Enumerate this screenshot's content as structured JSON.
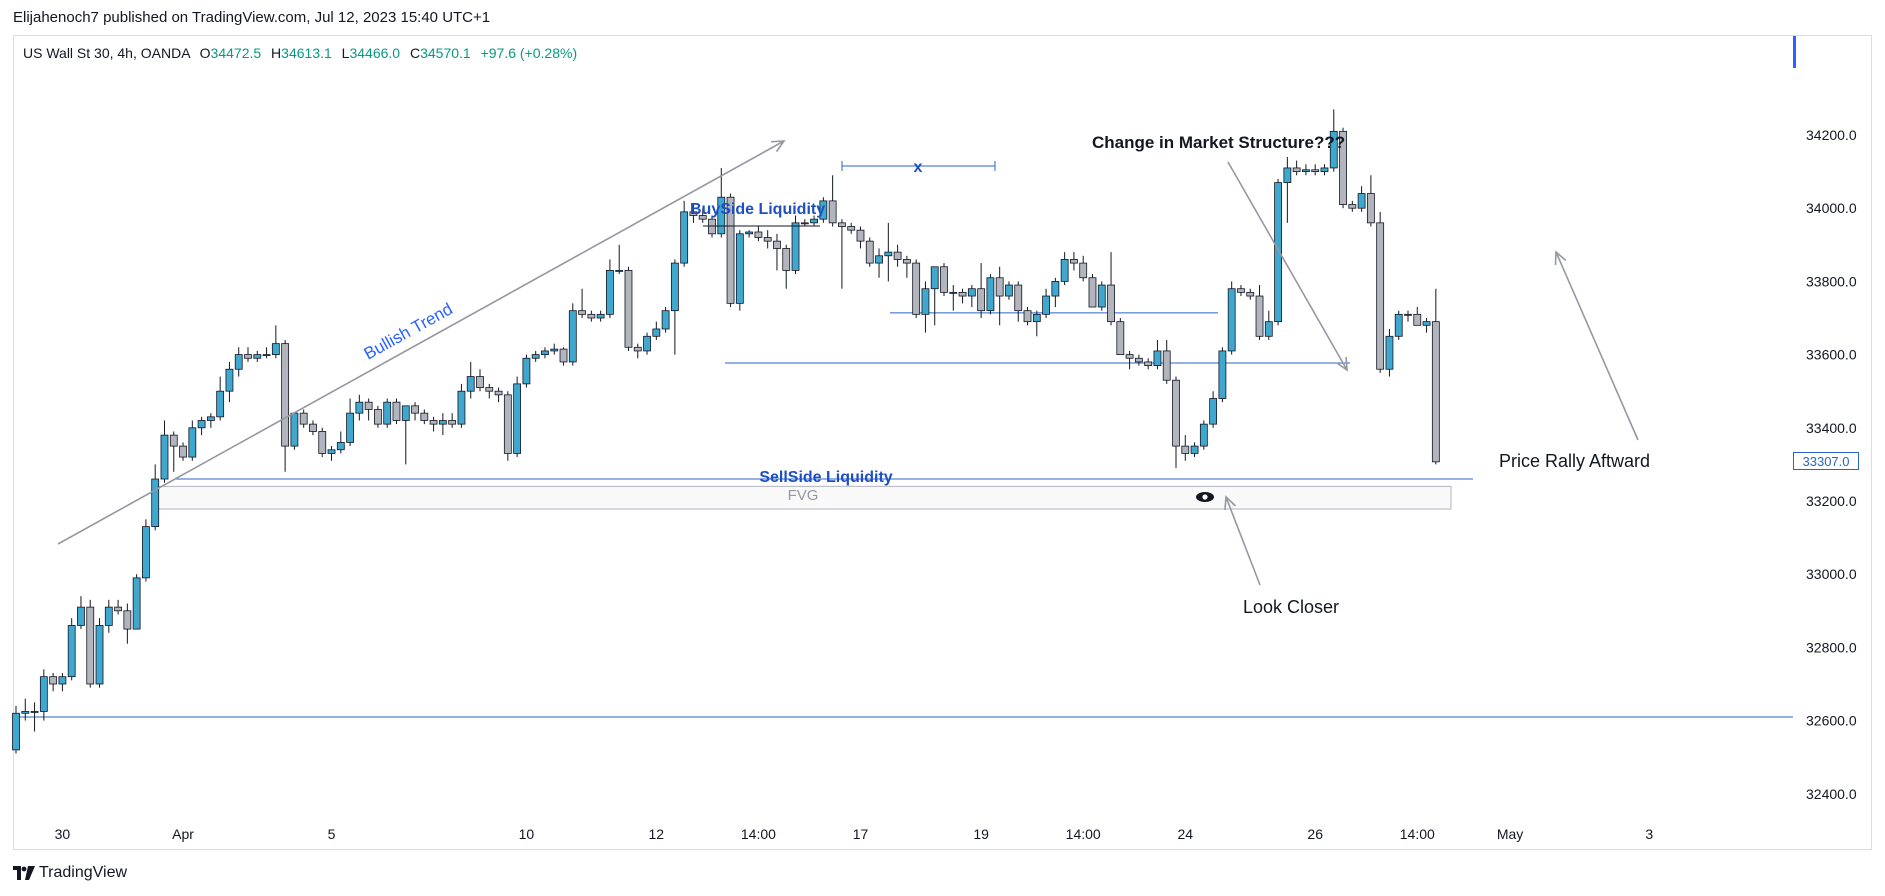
{
  "publish_line": "Elijahenoch7 published on TradingView.com, Jul 12, 2023 15:40 UTC+1",
  "legend": {
    "symbol": "US Wall St 30, 4h, OANDA",
    "open_label": "O",
    "open": "34472.5",
    "high_label": "H",
    "high": "34613.1",
    "low_label": "L",
    "low": "34466.0",
    "close_label": "C",
    "close": "34570.1",
    "change": "+97.6 (+0.28%)"
  },
  "footer": {
    "brand": "TradingView",
    "logo_icon": "tradingview-logo-icon"
  },
  "last_price_label": "33307.0",
  "colors": {
    "up": "#40a8cf",
    "down": "#b2b5be",
    "wick": "#131722",
    "line": "#2a64c8",
    "arrow": "#9598a1",
    "text_blue": "#1e4fc2"
  },
  "chart_data": {
    "type": "candlestick",
    "title": "US Wall St 30, 4h, OANDA",
    "ylim": [
      32350,
      34370
    ],
    "y_ticks": [
      "34200.0",
      "34000.0",
      "33800.0",
      "33600.0",
      "33400.0",
      "33200.0",
      "33000.0",
      "32800.0",
      "32600.0",
      "32400.0"
    ],
    "y_tick_values": [
      34200,
      34000,
      33800,
      33600,
      33400,
      33200,
      33000,
      32800,
      32600,
      32400
    ],
    "x_tick_labels": [
      {
        "label": "30",
        "i": 5
      },
      {
        "label": "Apr",
        "i": 18
      },
      {
        "label": "5",
        "i": 34
      },
      {
        "label": "10",
        "i": 55
      },
      {
        "label": "12",
        "i": 69
      },
      {
        "label": "14:00",
        "i": 80
      },
      {
        "label": "17",
        "i": 91
      },
      {
        "label": "19",
        "i": 104
      },
      {
        "label": "14:00",
        "i": 115
      },
      {
        "label": "24",
        "i": 126
      },
      {
        "label": "26",
        "i": 140
      },
      {
        "label": "14:00",
        "i": 151
      },
      {
        "label": "May",
        "i": 161
      },
      {
        "label": "3",
        "i": 176
      }
    ],
    "candles": [
      {
        "o": 32520,
        "h": 32640,
        "l": 32510,
        "c": 32620
      },
      {
        "o": 32620,
        "h": 32660,
        "l": 32600,
        "c": 32625
      },
      {
        "o": 32625,
        "h": 32650,
        "l": 32570,
        "c": 32625
      },
      {
        "o": 32625,
        "h": 32740,
        "l": 32600,
        "c": 32720
      },
      {
        "o": 32720,
        "h": 32730,
        "l": 32680,
        "c": 32700
      },
      {
        "o": 32700,
        "h": 32730,
        "l": 32680,
        "c": 32720
      },
      {
        "o": 32720,
        "h": 32880,
        "l": 32710,
        "c": 32860
      },
      {
        "o": 32860,
        "h": 32940,
        "l": 32850,
        "c": 32910
      },
      {
        "o": 32910,
        "h": 32930,
        "l": 32690,
        "c": 32700
      },
      {
        "o": 32700,
        "h": 32880,
        "l": 32690,
        "c": 32860
      },
      {
        "o": 32860,
        "h": 32930,
        "l": 32840,
        "c": 32910
      },
      {
        "o": 32910,
        "h": 32930,
        "l": 32890,
        "c": 32900
      },
      {
        "o": 32900,
        "h": 32920,
        "l": 32810,
        "c": 32850
      },
      {
        "o": 32850,
        "h": 33000,
        "l": 32850,
        "c": 32990
      },
      {
        "o": 32990,
        "h": 33150,
        "l": 32980,
        "c": 33130
      },
      {
        "o": 33130,
        "h": 33300,
        "l": 33120,
        "c": 33260
      },
      {
        "o": 33260,
        "h": 33420,
        "l": 33250,
        "c": 33380
      },
      {
        "o": 33380,
        "h": 33390,
        "l": 33280,
        "c": 33350
      },
      {
        "o": 33350,
        "h": 33360,
        "l": 33310,
        "c": 33320
      },
      {
        "o": 33320,
        "h": 33420,
        "l": 33310,
        "c": 33400
      },
      {
        "o": 33400,
        "h": 33430,
        "l": 33380,
        "c": 33420
      },
      {
        "o": 33420,
        "h": 33440,
        "l": 33400,
        "c": 33430
      },
      {
        "o": 33430,
        "h": 33540,
        "l": 33420,
        "c": 33500
      },
      {
        "o": 33500,
        "h": 33580,
        "l": 33470,
        "c": 33560
      },
      {
        "o": 33560,
        "h": 33620,
        "l": 33540,
        "c": 33600
      },
      {
        "o": 33600,
        "h": 33620,
        "l": 33580,
        "c": 33590
      },
      {
        "o": 33590,
        "h": 33610,
        "l": 33580,
        "c": 33600
      },
      {
        "o": 33600,
        "h": 33620,
        "l": 33590,
        "c": 33600
      },
      {
        "o": 33600,
        "h": 33680,
        "l": 33590,
        "c": 33630
      },
      {
        "o": 33630,
        "h": 33640,
        "l": 33280,
        "c": 33350
      },
      {
        "o": 33350,
        "h": 33420,
        "l": 33340,
        "c": 33440
      },
      {
        "o": 33440,
        "h": 33450,
        "l": 33400,
        "c": 33410
      },
      {
        "o": 33410,
        "h": 33420,
        "l": 33380,
        "c": 33390
      },
      {
        "o": 33390,
        "h": 33400,
        "l": 33320,
        "c": 33330
      },
      {
        "o": 33330,
        "h": 33350,
        "l": 33310,
        "c": 33340
      },
      {
        "o": 33340,
        "h": 33390,
        "l": 33330,
        "c": 33360
      },
      {
        "o": 33360,
        "h": 33480,
        "l": 33350,
        "c": 33440
      },
      {
        "o": 33440,
        "h": 33490,
        "l": 33420,
        "c": 33470
      },
      {
        "o": 33470,
        "h": 33480,
        "l": 33420,
        "c": 33450
      },
      {
        "o": 33450,
        "h": 33460,
        "l": 33400,
        "c": 33410
      },
      {
        "o": 33410,
        "h": 33480,
        "l": 33400,
        "c": 33470
      },
      {
        "o": 33470,
        "h": 33480,
        "l": 33410,
        "c": 33420
      },
      {
        "o": 33420,
        "h": 33460,
        "l": 33300,
        "c": 33460
      },
      {
        "o": 33460,
        "h": 33470,
        "l": 33420,
        "c": 33440
      },
      {
        "o": 33440,
        "h": 33450,
        "l": 33410,
        "c": 33420
      },
      {
        "o": 33420,
        "h": 33430,
        "l": 33390,
        "c": 33410
      },
      {
        "o": 33410,
        "h": 33440,
        "l": 33380,
        "c": 33420
      },
      {
        "o": 33420,
        "h": 33440,
        "l": 33400,
        "c": 33410
      },
      {
        "o": 33410,
        "h": 33520,
        "l": 33400,
        "c": 33500
      },
      {
        "o": 33500,
        "h": 33580,
        "l": 33480,
        "c": 33540
      },
      {
        "o": 33540,
        "h": 33560,
        "l": 33500,
        "c": 33510
      },
      {
        "o": 33510,
        "h": 33520,
        "l": 33480,
        "c": 33500
      },
      {
        "o": 33500,
        "h": 33510,
        "l": 33470,
        "c": 33490
      },
      {
        "o": 33490,
        "h": 33500,
        "l": 33310,
        "c": 33330
      },
      {
        "o": 33330,
        "h": 33540,
        "l": 33320,
        "c": 33520
      },
      {
        "o": 33520,
        "h": 33600,
        "l": 33510,
        "c": 33590
      },
      {
        "o": 33590,
        "h": 33610,
        "l": 33580,
        "c": 33600
      },
      {
        "o": 33600,
        "h": 33620,
        "l": 33590,
        "c": 33610
      },
      {
        "o": 33610,
        "h": 33630,
        "l": 33600,
        "c": 33615
      },
      {
        "o": 33615,
        "h": 33620,
        "l": 33570,
        "c": 33580
      },
      {
        "o": 33580,
        "h": 33740,
        "l": 33570,
        "c": 33720
      },
      {
        "o": 33720,
        "h": 33780,
        "l": 33700,
        "c": 33710
      },
      {
        "o": 33710,
        "h": 33720,
        "l": 33690,
        "c": 33700
      },
      {
        "o": 33700,
        "h": 33720,
        "l": 33690,
        "c": 33710
      },
      {
        "o": 33710,
        "h": 33860,
        "l": 33700,
        "c": 33830
      },
      {
        "o": 33830,
        "h": 33900,
        "l": 33820,
        "c": 33830
      },
      {
        "o": 33830,
        "h": 33840,
        "l": 33610,
        "c": 33620
      },
      {
        "o": 33620,
        "h": 33630,
        "l": 33590,
        "c": 33610
      },
      {
        "o": 33610,
        "h": 33660,
        "l": 33600,
        "c": 33650
      },
      {
        "o": 33650,
        "h": 33690,
        "l": 33640,
        "c": 33670
      },
      {
        "o": 33670,
        "h": 33730,
        "l": 33660,
        "c": 33720
      },
      {
        "o": 33720,
        "h": 33860,
        "l": 33600,
        "c": 33850
      },
      {
        "o": 33850,
        "h": 34020,
        "l": 33840,
        "c": 33990
      },
      {
        "o": 33990,
        "h": 34010,
        "l": 33960,
        "c": 33980
      },
      {
        "o": 33980,
        "h": 34000,
        "l": 33960,
        "c": 33970
      },
      {
        "o": 33970,
        "h": 33980,
        "l": 33920,
        "c": 33930
      },
      {
        "o": 33930,
        "h": 34110,
        "l": 33920,
        "c": 34030
      },
      {
        "o": 34030,
        "h": 34040,
        "l": 33730,
        "c": 33740
      },
      {
        "o": 33740,
        "h": 33940,
        "l": 33720,
        "c": 33930
      },
      {
        "o": 33930,
        "h": 33940,
        "l": 33920,
        "c": 33935
      },
      {
        "o": 33935,
        "h": 33950,
        "l": 33910,
        "c": 33920
      },
      {
        "o": 33920,
        "h": 33940,
        "l": 33890,
        "c": 33910
      },
      {
        "o": 33910,
        "h": 33930,
        "l": 33830,
        "c": 33890
      },
      {
        "o": 33890,
        "h": 33900,
        "l": 33780,
        "c": 33830
      },
      {
        "o": 33830,
        "h": 33980,
        "l": 33820,
        "c": 33960
      },
      {
        "o": 33960,
        "h": 33970,
        "l": 33950,
        "c": 33960
      },
      {
        "o": 33960,
        "h": 33980,
        "l": 33950,
        "c": 33970
      },
      {
        "o": 33970,
        "h": 34030,
        "l": 33960,
        "c": 34020
      },
      {
        "o": 34020,
        "h": 34090,
        "l": 33950,
        "c": 33960
      },
      {
        "o": 33960,
        "h": 33970,
        "l": 33780,
        "c": 33950
      },
      {
        "o": 33950,
        "h": 33960,
        "l": 33930,
        "c": 33940
      },
      {
        "o": 33940,
        "h": 33950,
        "l": 33890,
        "c": 33910
      },
      {
        "o": 33910,
        "h": 33920,
        "l": 33840,
        "c": 33850
      },
      {
        "o": 33850,
        "h": 33890,
        "l": 33810,
        "c": 33870
      },
      {
        "o": 33870,
        "h": 33960,
        "l": 33800,
        "c": 33880
      },
      {
        "o": 33880,
        "h": 33900,
        "l": 33840,
        "c": 33860
      },
      {
        "o": 33860,
        "h": 33870,
        "l": 33810,
        "c": 33850
      },
      {
        "o": 33850,
        "h": 33860,
        "l": 33700,
        "c": 33710
      },
      {
        "o": 33710,
        "h": 33800,
        "l": 33660,
        "c": 33780
      },
      {
        "o": 33780,
        "h": 33840,
        "l": 33680,
        "c": 33840
      },
      {
        "o": 33840,
        "h": 33850,
        "l": 33760,
        "c": 33770
      },
      {
        "o": 33770,
        "h": 33790,
        "l": 33720,
        "c": 33770
      },
      {
        "o": 33770,
        "h": 33780,
        "l": 33740,
        "c": 33760
      },
      {
        "o": 33760,
        "h": 33790,
        "l": 33730,
        "c": 33780
      },
      {
        "o": 33780,
        "h": 33850,
        "l": 33700,
        "c": 33720
      },
      {
        "o": 33720,
        "h": 33820,
        "l": 33710,
        "c": 33810
      },
      {
        "o": 33810,
        "h": 33840,
        "l": 33680,
        "c": 33760
      },
      {
        "o": 33760,
        "h": 33800,
        "l": 33750,
        "c": 33790
      },
      {
        "o": 33790,
        "h": 33800,
        "l": 33690,
        "c": 33720
      },
      {
        "o": 33720,
        "h": 33730,
        "l": 33680,
        "c": 33690
      },
      {
        "o": 33690,
        "h": 33720,
        "l": 33650,
        "c": 33710
      },
      {
        "o": 33710,
        "h": 33780,
        "l": 33700,
        "c": 33760
      },
      {
        "o": 33760,
        "h": 33810,
        "l": 33730,
        "c": 33800
      },
      {
        "o": 33800,
        "h": 33880,
        "l": 33790,
        "c": 33860
      },
      {
        "o": 33860,
        "h": 33880,
        "l": 33830,
        "c": 33850
      },
      {
        "o": 33850,
        "h": 33870,
        "l": 33800,
        "c": 33810
      },
      {
        "o": 33810,
        "h": 33820,
        "l": 33730,
        "c": 33730
      },
      {
        "o": 33730,
        "h": 33800,
        "l": 33720,
        "c": 33790
      },
      {
        "o": 33790,
        "h": 33880,
        "l": 33680,
        "c": 33690
      },
      {
        "o": 33690,
        "h": 33700,
        "l": 33600,
        "c": 33600
      },
      {
        "o": 33600,
        "h": 33610,
        "l": 33560,
        "c": 33590
      },
      {
        "o": 33590,
        "h": 33600,
        "l": 33570,
        "c": 33580
      },
      {
        "o": 33580,
        "h": 33590,
        "l": 33560,
        "c": 33570
      },
      {
        "o": 33570,
        "h": 33640,
        "l": 33560,
        "c": 33610
      },
      {
        "o": 33610,
        "h": 33640,
        "l": 33520,
        "c": 33530
      },
      {
        "o": 33530,
        "h": 33540,
        "l": 33290,
        "c": 33350
      },
      {
        "o": 33350,
        "h": 33380,
        "l": 33310,
        "c": 33330
      },
      {
        "o": 33330,
        "h": 33360,
        "l": 33320,
        "c": 33350
      },
      {
        "o": 33350,
        "h": 33420,
        "l": 33340,
        "c": 33410
      },
      {
        "o": 33410,
        "h": 33500,
        "l": 33400,
        "c": 33480
      },
      {
        "o": 33480,
        "h": 33620,
        "l": 33470,
        "c": 33610
      },
      {
        "o": 33610,
        "h": 33800,
        "l": 33600,
        "c": 33780
      },
      {
        "o": 33780,
        "h": 33790,
        "l": 33760,
        "c": 33770
      },
      {
        "o": 33770,
        "h": 33780,
        "l": 33750,
        "c": 33760
      },
      {
        "o": 33760,
        "h": 33790,
        "l": 33640,
        "c": 33650
      },
      {
        "o": 33650,
        "h": 33720,
        "l": 33640,
        "c": 33690
      },
      {
        "o": 33690,
        "h": 34080,
        "l": 33680,
        "c": 34070
      },
      {
        "o": 34070,
        "h": 34140,
        "l": 33960,
        "c": 34110
      },
      {
        "o": 34110,
        "h": 34130,
        "l": 34090,
        "c": 34100
      },
      {
        "o": 34100,
        "h": 34120,
        "l": 34090,
        "c": 34105
      },
      {
        "o": 34105,
        "h": 34120,
        "l": 34090,
        "c": 34100
      },
      {
        "o": 34100,
        "h": 34120,
        "l": 34090,
        "c": 34110
      },
      {
        "o": 34110,
        "h": 34270,
        "l": 34100,
        "c": 34210
      },
      {
        "o": 34210,
        "h": 34220,
        "l": 34000,
        "c": 34010
      },
      {
        "o": 34010,
        "h": 34020,
        "l": 33990,
        "c": 34000
      },
      {
        "o": 34000,
        "h": 34060,
        "l": 33990,
        "c": 34040
      },
      {
        "o": 34040,
        "h": 34090,
        "l": 33950,
        "c": 33960
      },
      {
        "o": 33960,
        "h": 33990,
        "l": 33550,
        "c": 33560
      },
      {
        "o": 33560,
        "h": 33670,
        "l": 33540,
        "c": 33650
      },
      {
        "o": 33650,
        "h": 33720,
        "l": 33640,
        "c": 33710
      },
      {
        "o": 33710,
        "h": 33720,
        "l": 33690,
        "c": 33710
      },
      {
        "o": 33710,
        "h": 33730,
        "l": 33690,
        "c": 33680
      },
      {
        "o": 33680,
        "h": 33700,
        "l": 33660,
        "c": 33690
      },
      {
        "o": 33690,
        "h": 33780,
        "l": 33300,
        "c": 33307
      }
    ],
    "annotations": {
      "bullish_trend": "Bullish Trend",
      "buyside": "BuySide Liquidity",
      "x_label": "x",
      "choch": "Change in Market Structure???",
      "sellside": "SellSide Liquidity",
      "fvg": "FVG",
      "look_closer": "Look Closer",
      "rally": "Price Rally Aftward",
      "horizontal_levels": [
        32610,
        33260,
        33577,
        33714
      ],
      "fvg_zone": [
        33178,
        33240
      ],
      "eye_icon": "eye-icon"
    }
  }
}
